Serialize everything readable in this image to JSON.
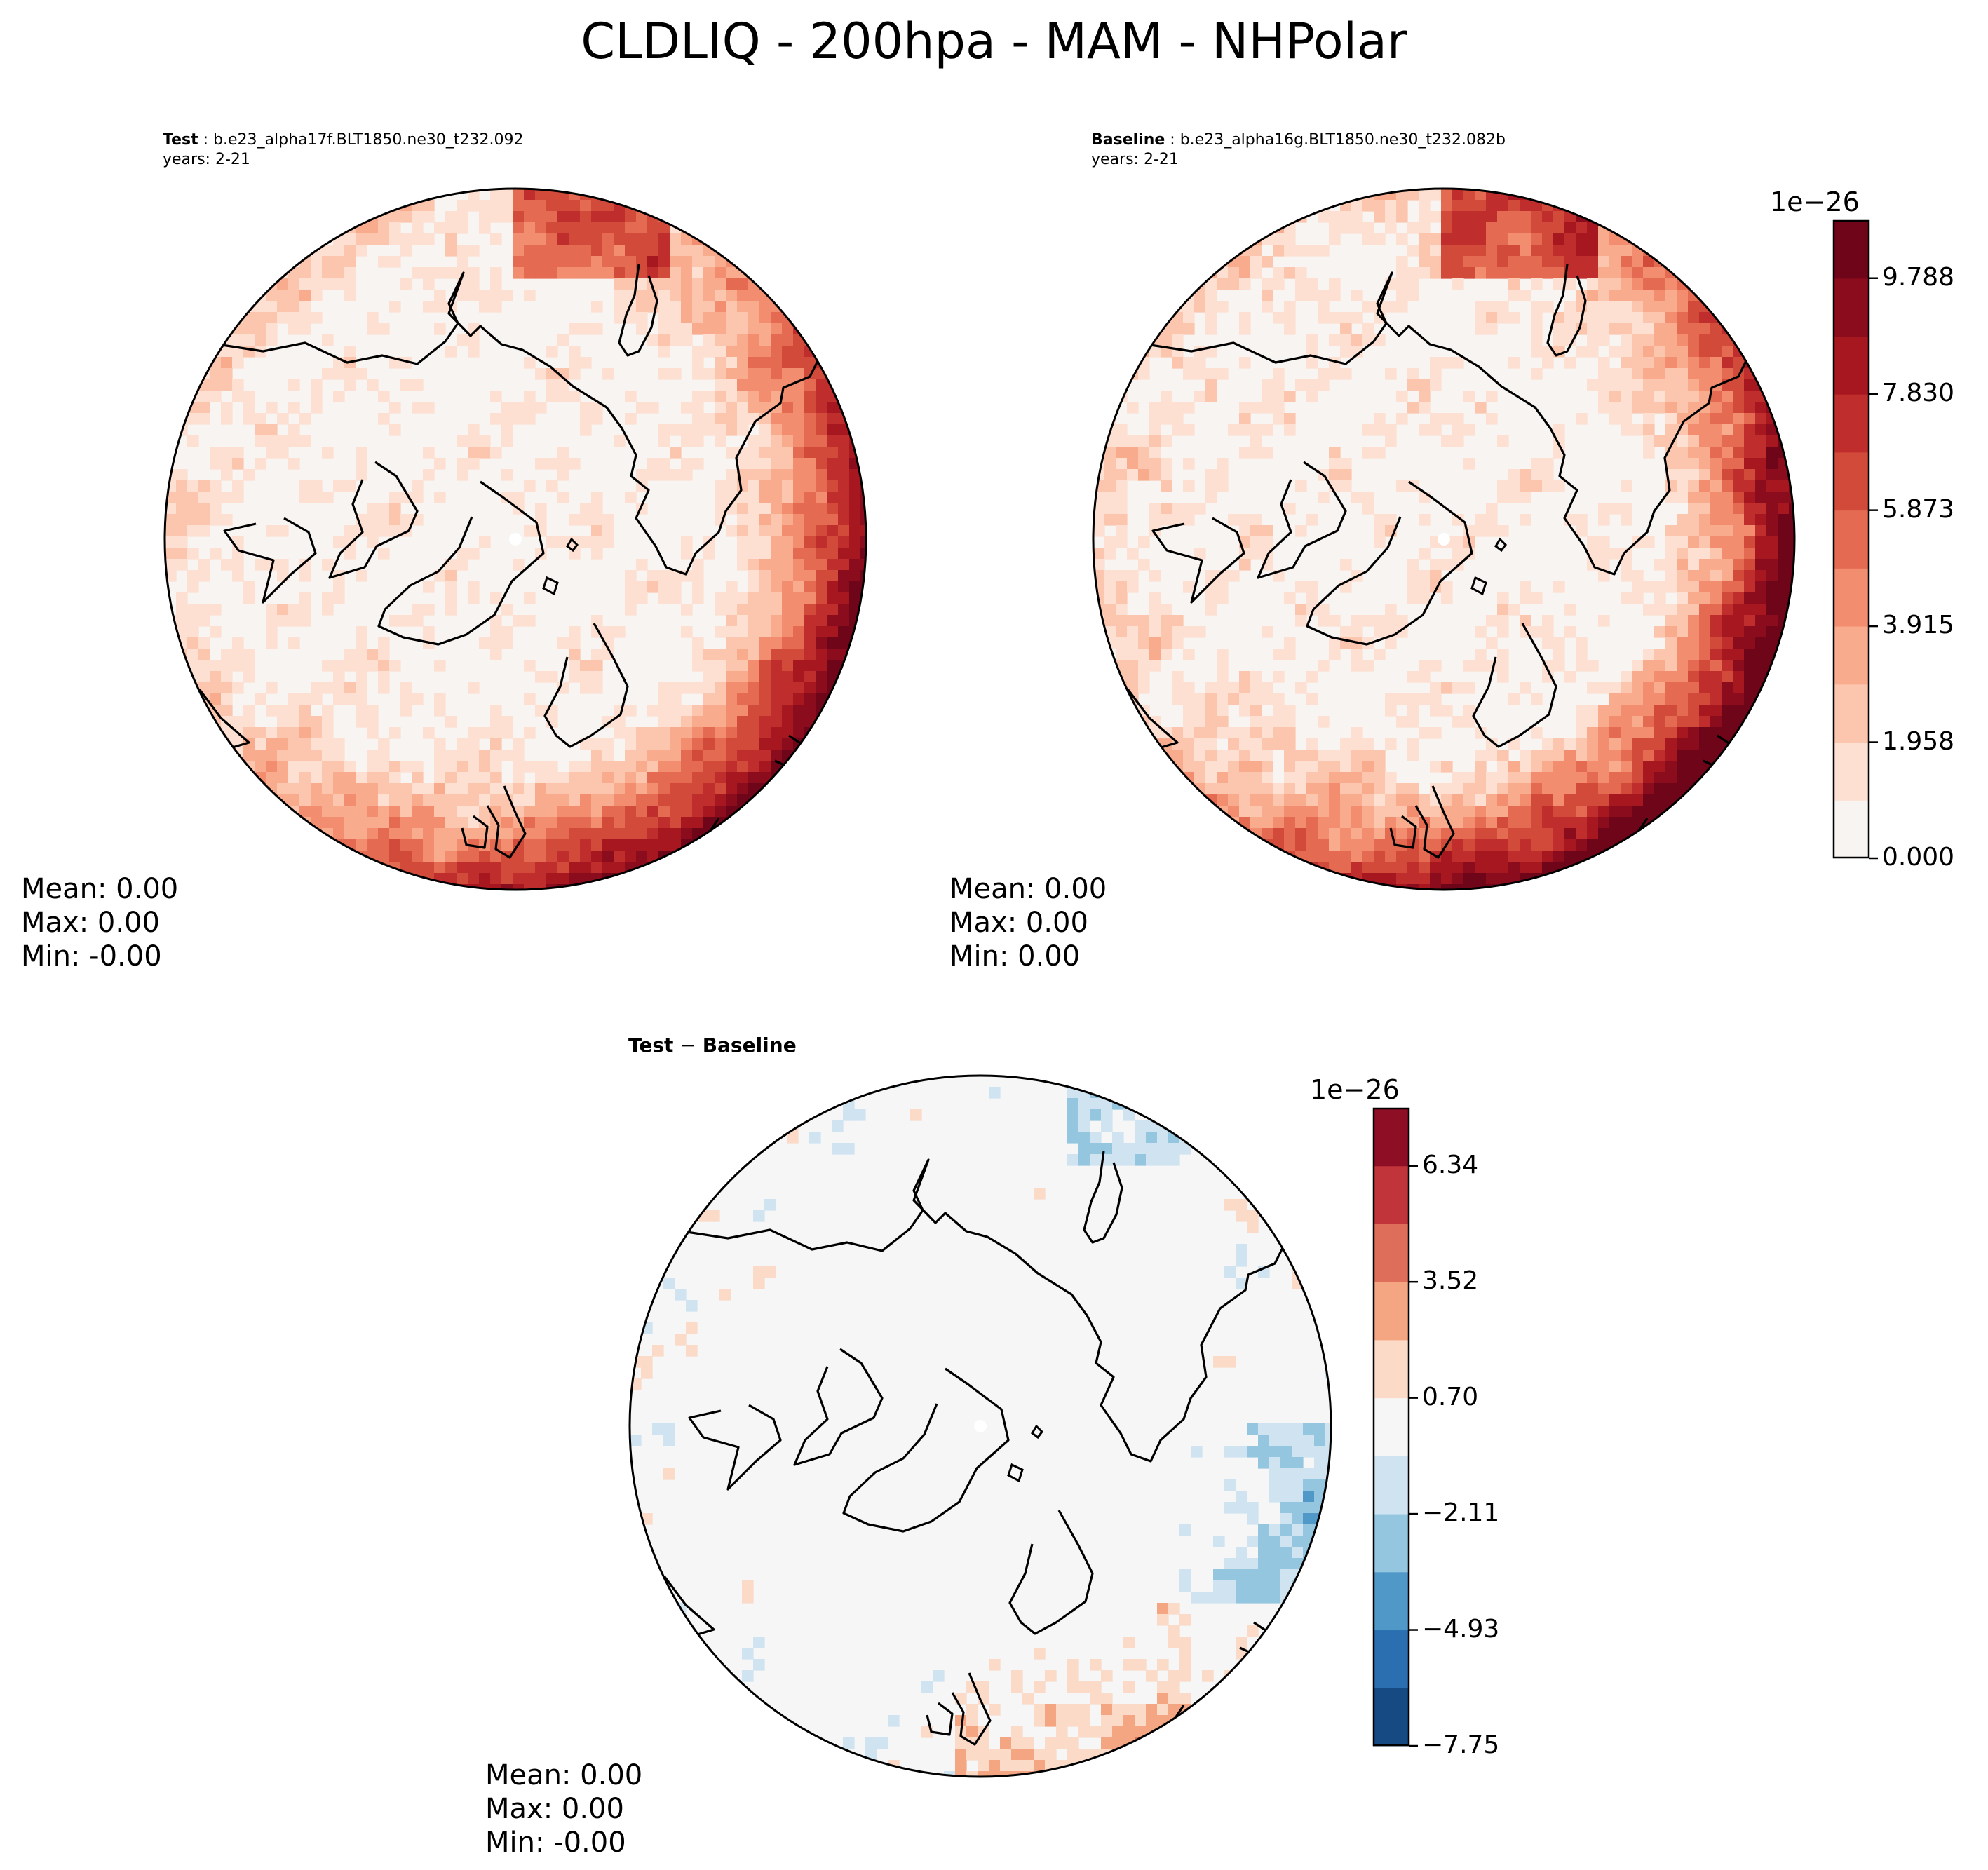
{
  "chart_data": [
    {
      "type": "heatmap",
      "title": "CLDLIQ - 200hpa - MAM - NHPolar",
      "panel_label": "Test",
      "case_name": "b.e23_alpha17f.BLT1850.ne30_t232.092",
      "years": "years: 2-21",
      "stats": {
        "mean": "Mean:  0.00",
        "max": "Max:  0.00",
        "min": "Min: -0.00"
      },
      "colormap": "Reds"
    },
    {
      "type": "heatmap",
      "panel_label": "Baseline",
      "case_name": "b.e23_alpha16g.BLT1850.ne30_t232.082b",
      "years": "years: 2-21",
      "stats": {
        "mean": "Mean:  0.00",
        "max": "Max:  0.00",
        "min": "Min:  0.00"
      },
      "colorbar": {
        "multiplier": "1e−26",
        "ticks": [
          "0.000",
          "1.958",
          "3.915",
          "5.873",
          "7.830",
          "9.788"
        ],
        "colors": [
          "#f7f4f1",
          "#fde0d2",
          "#fcc6ae",
          "#f9ac8d",
          "#f28d6f",
          "#e46b51",
          "#d24a3a",
          "#bf2e2c",
          "#a7171f",
          "#8b0c1c",
          "#6f0519"
        ]
      }
    },
    {
      "type": "heatmap",
      "panel_label": "Test − Baseline",
      "panel_label_short": "Test",
      "panel_label_rest": "Baseline",
      "stats": {
        "mean": "Mean:  0.00",
        "max": "Max:  0.00",
        "min": "Min: -0.00"
      },
      "colorbar": {
        "multiplier": "1e−26",
        "ticks": [
          "−7.75",
          "−4.93",
          "−2.11",
          "0.70",
          "3.52",
          "6.34"
        ],
        "colors": [
          "#154a83",
          "#2b6fb1",
          "#4f98c8",
          "#94c6e0",
          "#cfe4f0",
          "#f6f6f6",
          "#fbdac8",
          "#f4a582",
          "#de6e5a",
          "#c1343a",
          "#8e0e25"
        ]
      }
    }
  ]
}
